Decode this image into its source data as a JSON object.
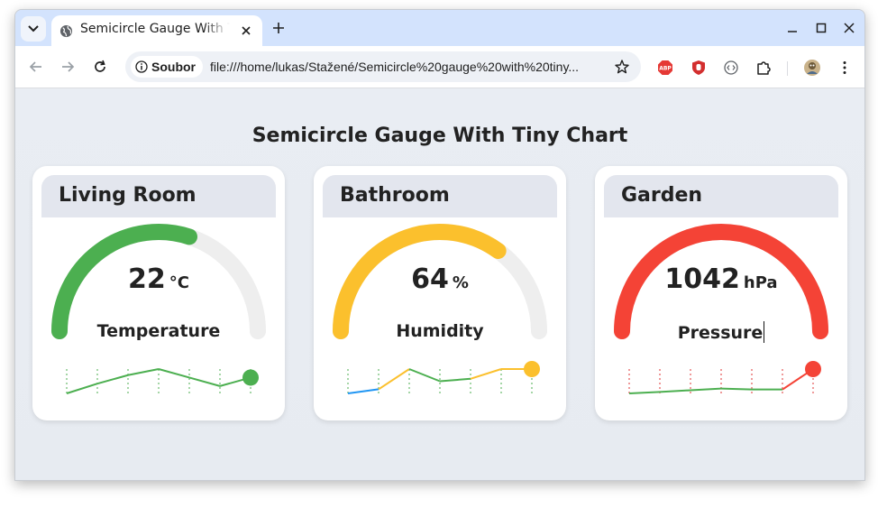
{
  "browser": {
    "tab_title": "Semicircle Gauge With Tiny Chart",
    "site_chip": "Soubor",
    "url": "file:///home/lukas/Stažené/Semicircle%20gauge%20with%20tiny..."
  },
  "page": {
    "title": "Semicircle Gauge With Tiny Chart",
    "track_color": "#eeeeee",
    "cards": [
      {
        "name": "Living Room",
        "value": "22",
        "unit": "°C",
        "label": "Temperature",
        "gauge_fraction": 0.6,
        "color": "#4caf50",
        "tick_color": "#a5d6a7",
        "spark": [
          {
            "v": 0.0,
            "color": "#4caf50"
          },
          {
            "v": 0.4,
            "color": "#4caf50"
          },
          {
            "v": 0.75,
            "color": "#4caf50"
          },
          {
            "v": 1.0,
            "color": "#4caf50"
          },
          {
            "v": 0.65,
            "color": "#4caf50"
          },
          {
            "v": 0.3,
            "color": "#4caf50"
          },
          {
            "v": 0.65,
            "color": "#4caf50"
          }
        ]
      },
      {
        "name": "Bathroom",
        "value": "64",
        "unit": "%",
        "label": "Humidity",
        "gauge_fraction": 0.7,
        "color": "#fbc02d",
        "tick_color": "#a5d6a7",
        "spark": [
          {
            "v": 0.0,
            "color": "#2196f3"
          },
          {
            "v": 0.17,
            "color": "#2196f3"
          },
          {
            "v": 1.0,
            "color": "#fbc02d"
          },
          {
            "v": 0.5,
            "color": "#4caf50"
          },
          {
            "v": 0.6,
            "color": "#4caf50"
          },
          {
            "v": 1.0,
            "color": "#fbc02d"
          },
          {
            "v": 1.0,
            "color": "#fbc02d"
          }
        ]
      },
      {
        "name": "Garden",
        "value": "1042",
        "unit": "hPa",
        "label": "Pressure",
        "gauge_fraction": 1.0,
        "color": "#f44336",
        "tick_color": "#ef9a9a",
        "spark": [
          {
            "v": 0.0,
            "color": "#4caf50"
          },
          {
            "v": 0.06,
            "color": "#4caf50"
          },
          {
            "v": 0.13,
            "color": "#4caf50"
          },
          {
            "v": 0.2,
            "color": "#4caf50"
          },
          {
            "v": 0.16,
            "color": "#4caf50"
          },
          {
            "v": 0.16,
            "color": "#4caf50"
          },
          {
            "v": 1.0,
            "color": "#f44336"
          }
        ]
      }
    ]
  }
}
